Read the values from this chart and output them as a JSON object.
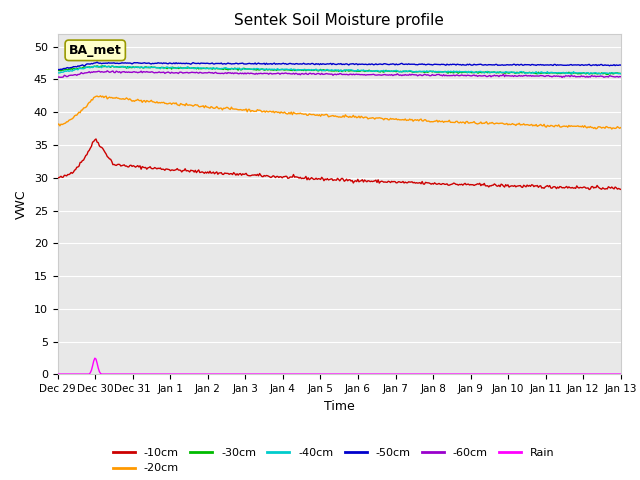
{
  "title": "Sentek Soil Moisture profile",
  "xlabel": "Time",
  "ylabel": "VWC",
  "ylim": [
    0,
    52
  ],
  "yticks": [
    0,
    5,
    10,
    15,
    20,
    25,
    30,
    35,
    40,
    45,
    50
  ],
  "xtick_labels": [
    "Dec 29",
    "Dec 30",
    "Dec 31",
    "Jan 1",
    "Jan 2",
    "Jan 3",
    "Jan 4",
    "Jan 5",
    "Jan 6",
    "Jan 7",
    "Jan 8",
    "Jan 9",
    "Jan 10",
    "Jan 11",
    "Jan 12",
    "Jan 13"
  ],
  "annotation_text": "BA_met",
  "colors": {
    "-10cm": "#cc0000",
    "-20cm": "#ff9900",
    "-30cm": "#00bb00",
    "-40cm": "#00cccc",
    "-50cm": "#0000cc",
    "-60cm": "#9900cc",
    "Rain": "#ff00ff"
  },
  "bg_color": "#e8e8e8",
  "fig_bg_color": "#ffffff",
  "n_points": 500,
  "end_day": 15
}
